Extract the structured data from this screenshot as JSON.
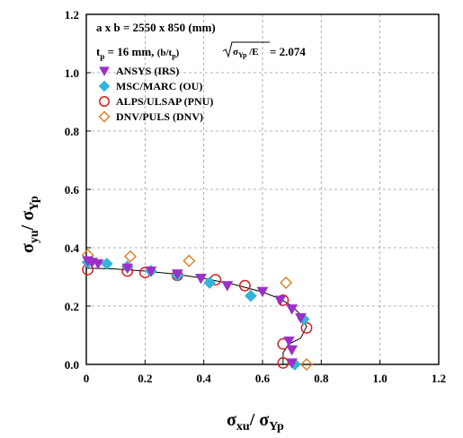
{
  "chart_data": {
    "type": "scatter",
    "xlim": [
      0,
      1.2
    ],
    "ylim": [
      0,
      1.2
    ],
    "x_ticks": [
      "0",
      "0.2",
      "0.4",
      "0.6",
      "0.8",
      "1.0",
      "1.2"
    ],
    "y_ticks": [
      "0.0",
      "0.2",
      "0.4",
      "0.6",
      "0.8",
      "1.0",
      "1.2"
    ],
    "grid": true,
    "grid_style": "dashed",
    "legend_position": "top-left",
    "xlabel": {
      "main": "σ",
      "sub": "xu",
      "sep": "/ ",
      "main2": "σ",
      "sub2": "Yp"
    },
    "ylabel": {
      "main": "σ",
      "sub": "yu",
      "sep": "/ ",
      "main2": "σ",
      "sub2": "Yp"
    },
    "annotation_line1": "a x b = 2550 x 850 (mm)",
    "annotation_line2": {
      "t": "t",
      "t_sub": "p",
      "eq": " = 16 mm, ",
      "ratio_open": "(b/t",
      "ratio_sub": "p",
      "ratio_close": ")",
      "sqrt_inner_sigma": "σ",
      "sqrt_inner_sub": "Yp",
      "sqrt_inner_tail": " /E",
      "result": " = 2.074"
    },
    "series": [
      {
        "name": "ANSYS (IRS)",
        "marker": "triangle-down",
        "color": "#9b30c8",
        "points": [
          [
            0.005,
            0.355
          ],
          [
            0.02,
            0.35
          ],
          [
            0.04,
            0.345
          ],
          [
            0.14,
            0.33
          ],
          [
            0.22,
            0.32
          ],
          [
            0.31,
            0.31
          ],
          [
            0.39,
            0.295
          ],
          [
            0.48,
            0.27
          ],
          [
            0.6,
            0.25
          ],
          [
            0.66,
            0.22
          ],
          [
            0.7,
            0.19
          ],
          [
            0.73,
            0.16
          ],
          [
            0.69,
            0.08
          ],
          [
            0.7,
            0.05
          ],
          [
            0.7,
            0.005
          ]
        ]
      },
      {
        "name": "MSC/MARC (OU)",
        "marker": "diamond",
        "color": "#33b5d9",
        "points": [
          [
            0.005,
            0.35
          ],
          [
            0.07,
            0.345
          ],
          [
            0.14,
            0.335
          ],
          [
            0.22,
            0.32
          ],
          [
            0.31,
            0.305
          ],
          [
            0.42,
            0.28
          ],
          [
            0.56,
            0.235
          ],
          [
            0.74,
            0.155
          ],
          [
            0.71,
            0.0
          ]
        ]
      },
      {
        "name": "ALPS/ULSAP (PNU)",
        "marker": "circle-open",
        "color": "#d62020",
        "points": [
          [
            0.005,
            0.325
          ],
          [
            0.14,
            0.32
          ],
          [
            0.2,
            0.315
          ],
          [
            0.31,
            0.305
          ],
          [
            0.44,
            0.29
          ],
          [
            0.54,
            0.27
          ],
          [
            0.67,
            0.22
          ],
          [
            0.75,
            0.125
          ],
          [
            0.67,
            0.07
          ],
          [
            0.67,
            0.005
          ]
        ]
      },
      {
        "name": "DNV/PULS (DNV)",
        "marker": "diamond-open",
        "color": "#d9822b",
        "points": [
          [
            0.005,
            0.375
          ],
          [
            0.15,
            0.37
          ],
          [
            0.35,
            0.355
          ],
          [
            0.68,
            0.28
          ],
          [
            0.75,
            0.0
          ]
        ]
      }
    ],
    "fitted_curve": {
      "color": "#000000",
      "points": [
        [
          0.0,
          0.33
        ],
        [
          0.1,
          0.327
        ],
        [
          0.2,
          0.32
        ],
        [
          0.3,
          0.31
        ],
        [
          0.4,
          0.295
        ],
        [
          0.5,
          0.275
        ],
        [
          0.6,
          0.248
        ],
        [
          0.66,
          0.225
        ],
        [
          0.7,
          0.2
        ],
        [
          0.73,
          0.17
        ],
        [
          0.75,
          0.13
        ],
        [
          0.73,
          0.09
        ],
        [
          0.69,
          0.07
        ],
        [
          0.67,
          0.04
        ],
        [
          0.67,
          0.0
        ]
      ]
    }
  }
}
